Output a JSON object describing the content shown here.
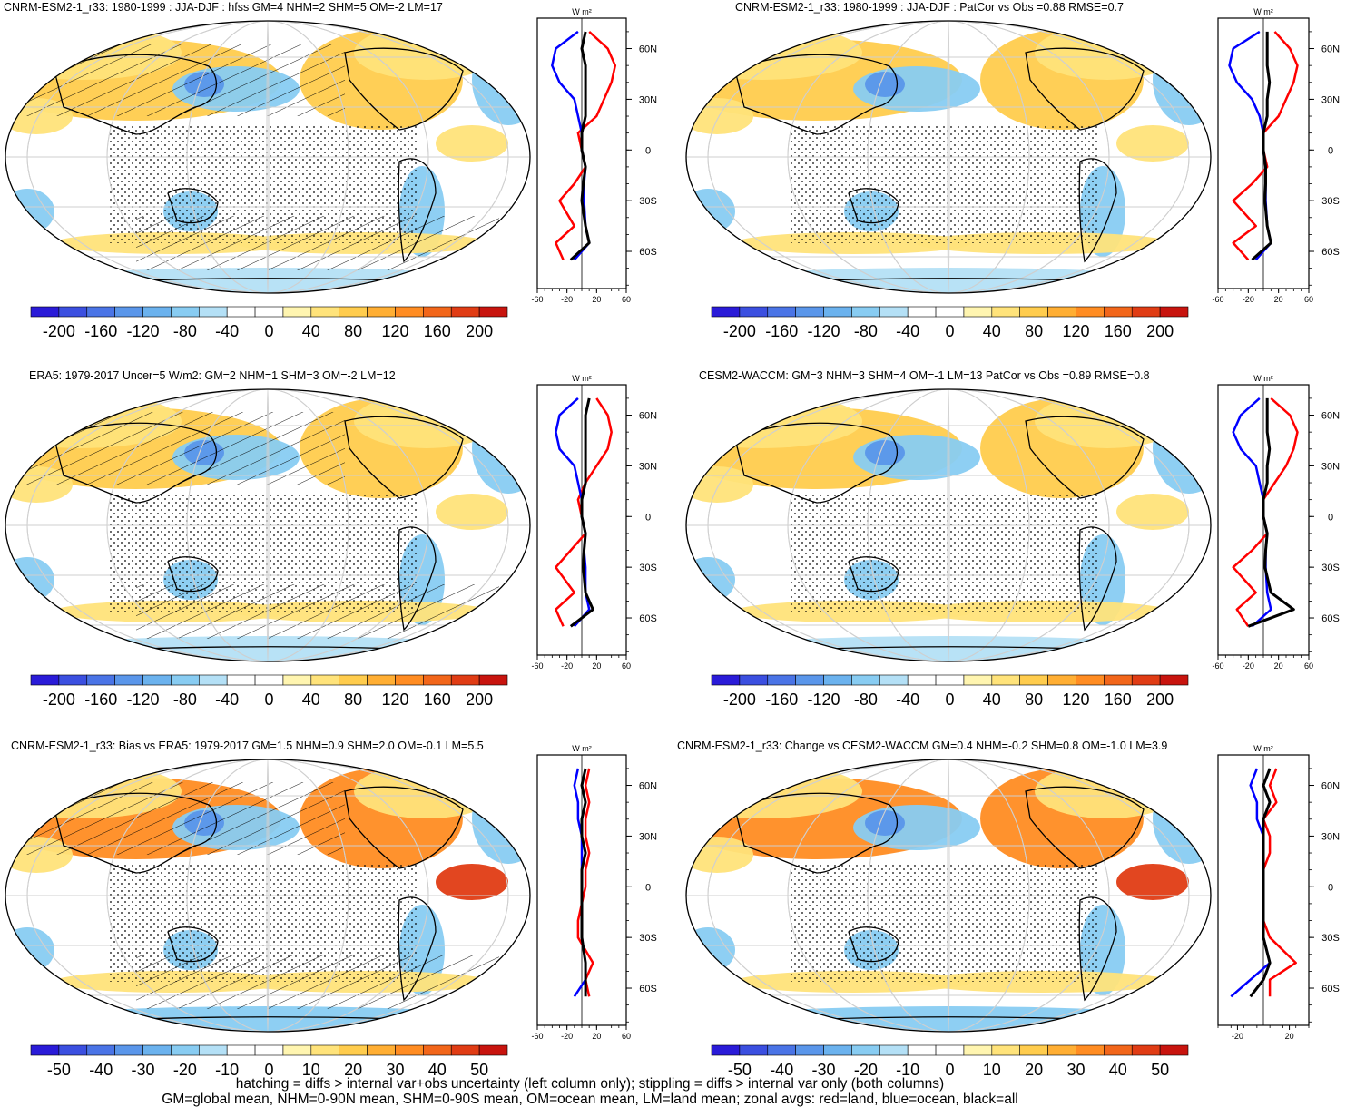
{
  "panels": [
    {
      "title": "CNRM-ESM2-1_r33: 1980-1999 : JJA-DJF : hfss GM=4 NHM=2 SHM=5 OM=-2 LM=17",
      "cbar_ticks": [
        "-200",
        "-160",
        "-120",
        "-80",
        "-40",
        "0",
        "40",
        "80",
        "120",
        "160",
        "200"
      ],
      "units": "W m²",
      "zonal_ticks": [
        "-60",
        "-20",
        "20",
        "60"
      ],
      "lat_labels": [
        "60N",
        "30N",
        "0",
        "30S",
        "60S"
      ]
    },
    {
      "title": "CNRM-ESM2-1_r33: 1980-1999 : JJA-DJF : PatCor vs Obs =0.88 RMSE=0.7",
      "cbar_ticks": [
        "-200",
        "-160",
        "-120",
        "-80",
        "-40",
        "0",
        "40",
        "80",
        "120",
        "160",
        "200"
      ],
      "units": "W m²",
      "zonal_ticks": [
        "-60",
        "-20",
        "20",
        "60"
      ],
      "lat_labels": [
        "60N",
        "30N",
        "0",
        "30S",
        "60S"
      ]
    },
    {
      "title": "ERA5: 1979-2017 Uncer=5 W/m2: GM=2 NHM=1 SHM=3 OM=-2 LM=12",
      "cbar_ticks": [
        "-200",
        "-160",
        "-120",
        "-80",
        "-40",
        "0",
        "40",
        "80",
        "120",
        "160",
        "200"
      ],
      "units": "W m²",
      "zonal_ticks": [
        "-60",
        "-20",
        "20",
        "60"
      ],
      "lat_labels": [
        "60N",
        "30N",
        "0",
        "30S",
        "60S"
      ]
    },
    {
      "title": "CESM2-WACCM: GM=3 NHM=3 SHM=4 OM=-1 LM=13 PatCor vs Obs =0.89 RMSE=0.8",
      "cbar_ticks": [
        "-200",
        "-160",
        "-120",
        "-80",
        "-40",
        "0",
        "40",
        "80",
        "120",
        "160",
        "200"
      ],
      "units": "W m²",
      "zonal_ticks": [
        "-60",
        "-20",
        "20",
        "60"
      ],
      "lat_labels": [
        "60N",
        "30N",
        "0",
        "30S",
        "60S"
      ]
    },
    {
      "title": "CNRM-ESM2-1_r33: Bias vs ERA5: 1979-2017 GM=1.5 NHM=0.9 SHM=2.0 OM=-0.1 LM=5.5",
      "cbar_ticks": [
        "-50",
        "-40",
        "-30",
        "-20",
        "-10",
        "0",
        "10",
        "20",
        "30",
        "40",
        "50"
      ],
      "units": "W m²",
      "zonal_ticks": [
        "-60",
        "-20",
        "20",
        "60"
      ],
      "lat_labels": [
        "60N",
        "30N",
        "0",
        "30S",
        "60S"
      ]
    },
    {
      "title": "CNRM-ESM2-1_r33: Change vs CESM2-WACCM GM=0.4 NHM=-0.2 SHM=0.8 OM=-1.0 LM=3.9",
      "cbar_ticks": [
        "-50",
        "-40",
        "-30",
        "-20",
        "-10",
        "0",
        "10",
        "20",
        "30",
        "40",
        "50"
      ],
      "units": "W m²",
      "zonal_ticks": [
        "-20",
        "20"
      ],
      "lat_labels": [
        "60N",
        "30N",
        "0",
        "30S",
        "60S"
      ]
    }
  ],
  "footer": {
    "line1": "hatching = diffs > internal var+obs uncertainty (left column only); stippling = diffs > internal var only (both columns)",
    "line2": "GM=global mean, NHM=0-90N mean, SHM=0-90S mean, OM=ocean mean, LM=land mean; zonal avgs: red=land, blue=ocean, black=all"
  },
  "colors": {
    "palette": [
      "#2a1bd8",
      "#3b4fe0",
      "#4a74e6",
      "#5a96ea",
      "#6bb2ee",
      "#88ccf2",
      "#b4e0f6",
      "#ffffff",
      "#ffffff",
      "#fff5b0",
      "#ffe37a",
      "#ffcc4d",
      "#ffae33",
      "#ff8c22",
      "#f2661a",
      "#e03c14",
      "#c8140e"
    ],
    "land_zonal": "#ff0000",
    "ocean_zonal": "#0000ff",
    "all_zonal": "#000000"
  },
  "chart_data": [
    {
      "type": "heatmap",
      "title": "CNRM-ESM2-1_r33: 1980-1999 : JJA-DJF : hfss GM=4 NHM=2 SHM=5 OM=-2 LM=17",
      "colorbar_range": [
        -200,
        200
      ],
      "zonal_xlim": [
        -60,
        60
      ],
      "grid": true,
      "zonal_series": [
        {
          "name": "red=land",
          "lat": [
            70,
            60,
            50,
            40,
            30,
            20,
            10,
            0,
            -10,
            -20,
            -30,
            -45,
            -55,
            -65
          ],
          "values": [
            10,
            35,
            45,
            40,
            30,
            20,
            -5,
            0,
            5,
            -10,
            -30,
            -10,
            -35,
            -25
          ]
        },
        {
          "name": "blue=ocean",
          "lat": [
            70,
            60,
            50,
            40,
            30,
            20,
            10,
            0,
            -10,
            -20,
            -30,
            -45,
            -55,
            -65
          ],
          "values": [
            -5,
            -35,
            -40,
            -30,
            -10,
            -5,
            0,
            0,
            5,
            3,
            3,
            5,
            10,
            -10
          ]
        },
        {
          "name": "black=all",
          "lat": [
            70,
            60,
            50,
            40,
            30,
            20,
            10,
            0,
            -10,
            -20,
            -30,
            -45,
            -55,
            -65
          ],
          "values": [
            5,
            0,
            5,
            5,
            5,
            5,
            0,
            0,
            5,
            2,
            0,
            5,
            10,
            -15
          ]
        }
      ]
    },
    {
      "type": "heatmap",
      "title": "CNRM-ESM2-1_r33: 1980-1999 : JJA-DJF : PatCor vs Obs =0.88 RMSE=0.7",
      "colorbar_range": [
        -200,
        200
      ],
      "zonal_xlim": [
        -60,
        60
      ],
      "grid": true,
      "zonal_series": [
        {
          "name": "red=land",
          "lat": [
            70,
            60,
            50,
            40,
            30,
            20,
            10,
            0,
            -10,
            -20,
            -30,
            -45,
            -55,
            -65
          ],
          "values": [
            15,
            35,
            45,
            40,
            30,
            20,
            0,
            0,
            5,
            -15,
            -40,
            -10,
            -40,
            -20
          ]
        },
        {
          "name": "blue=ocean",
          "lat": [
            70,
            60,
            50,
            40,
            30,
            20,
            10,
            0,
            -10,
            -20,
            -30,
            -45,
            -55,
            -65
          ],
          "values": [
            -5,
            -40,
            -45,
            -35,
            -15,
            -5,
            0,
            0,
            3,
            3,
            3,
            5,
            10,
            -10
          ]
        },
        {
          "name": "black=all",
          "lat": [
            70,
            60,
            50,
            40,
            30,
            20,
            10,
            0,
            -10,
            -20,
            -30,
            -45,
            -55,
            -65
          ],
          "values": [
            5,
            5,
            5,
            8,
            5,
            5,
            0,
            0,
            3,
            3,
            2,
            5,
            10,
            -15
          ]
        }
      ]
    },
    {
      "type": "heatmap",
      "title": "ERA5: 1979-2017 Uncer=5 W/m2: GM=2 NHM=1 SHM=3 OM=-2 LM=12",
      "colorbar_range": [
        -200,
        200
      ],
      "zonal_xlim": [
        -60,
        60
      ],
      "grid": true,
      "zonal_series": [
        {
          "name": "red=land",
          "lat": [
            70,
            60,
            50,
            40,
            30,
            20,
            10,
            0,
            -10,
            -20,
            -30,
            -45,
            -55,
            -65
          ],
          "values": [
            20,
            35,
            40,
            35,
            20,
            5,
            -5,
            0,
            5,
            -15,
            -35,
            -10,
            -35,
            -25
          ]
        },
        {
          "name": "blue=ocean",
          "lat": [
            70,
            60,
            50,
            40,
            30,
            20,
            10,
            0,
            -10,
            -20,
            -30,
            -45,
            -55,
            -65
          ],
          "values": [
            -5,
            -30,
            -35,
            -30,
            -10,
            -5,
            0,
            0,
            5,
            3,
            5,
            5,
            10,
            -10
          ]
        },
        {
          "name": "black=all",
          "lat": [
            70,
            60,
            50,
            40,
            30,
            20,
            10,
            0,
            -10,
            -20,
            -30,
            -45,
            -55,
            -65
          ],
          "values": [
            10,
            5,
            5,
            5,
            5,
            5,
            0,
            0,
            5,
            3,
            2,
            5,
            15,
            -15
          ]
        }
      ]
    },
    {
      "type": "heatmap",
      "title": "CESM2-WACCM: GM=3 NHM=3 SHM=4 OM=-1 LM=13 PatCor vs Obs =0.89 RMSE=0.8",
      "colorbar_range": [
        -200,
        200
      ],
      "zonal_xlim": [
        -60,
        60
      ],
      "grid": true,
      "zonal_series": [
        {
          "name": "red=land",
          "lat": [
            70,
            60,
            50,
            40,
            30,
            20,
            10,
            0,
            -10,
            -20,
            -30,
            -45,
            -55,
            -65
          ],
          "values": [
            10,
            35,
            45,
            40,
            30,
            15,
            0,
            0,
            5,
            -15,
            -40,
            -10,
            -35,
            -20
          ]
        },
        {
          "name": "blue=ocean",
          "lat": [
            70,
            60,
            50,
            40,
            30,
            20,
            10,
            0,
            -10,
            -20,
            -30,
            -45,
            -55,
            -65
          ],
          "values": [
            -5,
            -30,
            -40,
            -30,
            -10,
            -5,
            0,
            0,
            5,
            3,
            3,
            5,
            10,
            -15
          ]
        },
        {
          "name": "black=all",
          "lat": [
            70,
            60,
            50,
            40,
            30,
            20,
            10,
            0,
            -10,
            -20,
            -30,
            -45,
            -55,
            -65
          ],
          "values": [
            5,
            5,
            5,
            8,
            5,
            5,
            0,
            0,
            5,
            3,
            2,
            10,
            40,
            -20
          ]
        }
      ]
    },
    {
      "type": "heatmap",
      "title": "CNRM-ESM2-1_r33: Bias vs ERA5: 1979-2017 GM=1.5 NHM=0.9 SHM=2.0 OM=-0.1 LM=5.5",
      "colorbar_range": [
        -50,
        50
      ],
      "zonal_xlim": [
        -60,
        60
      ],
      "grid": true,
      "zonal_series": [
        {
          "name": "red=land",
          "lat": [
            70,
            60,
            50,
            40,
            30,
            20,
            10,
            0,
            -10,
            -20,
            -30,
            -45,
            -55,
            -65
          ],
          "values": [
            10,
            5,
            10,
            5,
            5,
            10,
            5,
            5,
            0,
            -5,
            -5,
            15,
            5,
            10
          ]
        },
        {
          "name": "blue=ocean",
          "lat": [
            70,
            60,
            50,
            40,
            30,
            20,
            10,
            0,
            -10,
            -20,
            -30,
            -45,
            -55,
            -65
          ],
          "values": [
            -5,
            -10,
            -5,
            -5,
            0,
            0,
            0,
            0,
            0,
            0,
            0,
            5,
            5,
            -10
          ]
        },
        {
          "name": "black=all",
          "lat": [
            70,
            60,
            50,
            40,
            30,
            20,
            10,
            0,
            -10,
            -20,
            -30,
            -45,
            -55,
            -65
          ],
          "values": [
            5,
            0,
            5,
            0,
            0,
            5,
            0,
            0,
            0,
            0,
            0,
            5,
            5,
            5
          ]
        }
      ]
    },
    {
      "type": "heatmap",
      "title": "CNRM-ESM2-1_r33: Change vs CESM2-WACCM GM=0.4 NHM=-0.2 SHM=0.8 OM=-1.0 LM=3.9",
      "colorbar_range": [
        -50,
        50
      ],
      "zonal_xlim": [
        -35,
        35
      ],
      "grid": true,
      "zonal_series": [
        {
          "name": "red=land",
          "lat": [
            70,
            60,
            50,
            40,
            30,
            20,
            10,
            0,
            -10,
            -20,
            -30,
            -45,
            -55,
            -65
          ],
          "values": [
            10,
            5,
            10,
            0,
            5,
            5,
            0,
            0,
            0,
            0,
            5,
            25,
            5,
            5
          ]
        },
        {
          "name": "blue=ocean",
          "lat": [
            70,
            60,
            50,
            40,
            30,
            20,
            10,
            0,
            -10,
            -20,
            -30,
            -45,
            -55,
            -65
          ],
          "values": [
            -5,
            -10,
            -5,
            -5,
            0,
            0,
            0,
            0,
            0,
            0,
            0,
            5,
            -10,
            -25
          ]
        },
        {
          "name": "black=all",
          "lat": [
            70,
            60,
            50,
            40,
            30,
            20,
            10,
            0,
            -10,
            -20,
            -30,
            -45,
            -55,
            -65
          ],
          "values": [
            5,
            0,
            5,
            0,
            0,
            0,
            0,
            0,
            0,
            0,
            0,
            5,
            0,
            -10
          ]
        }
      ]
    }
  ]
}
